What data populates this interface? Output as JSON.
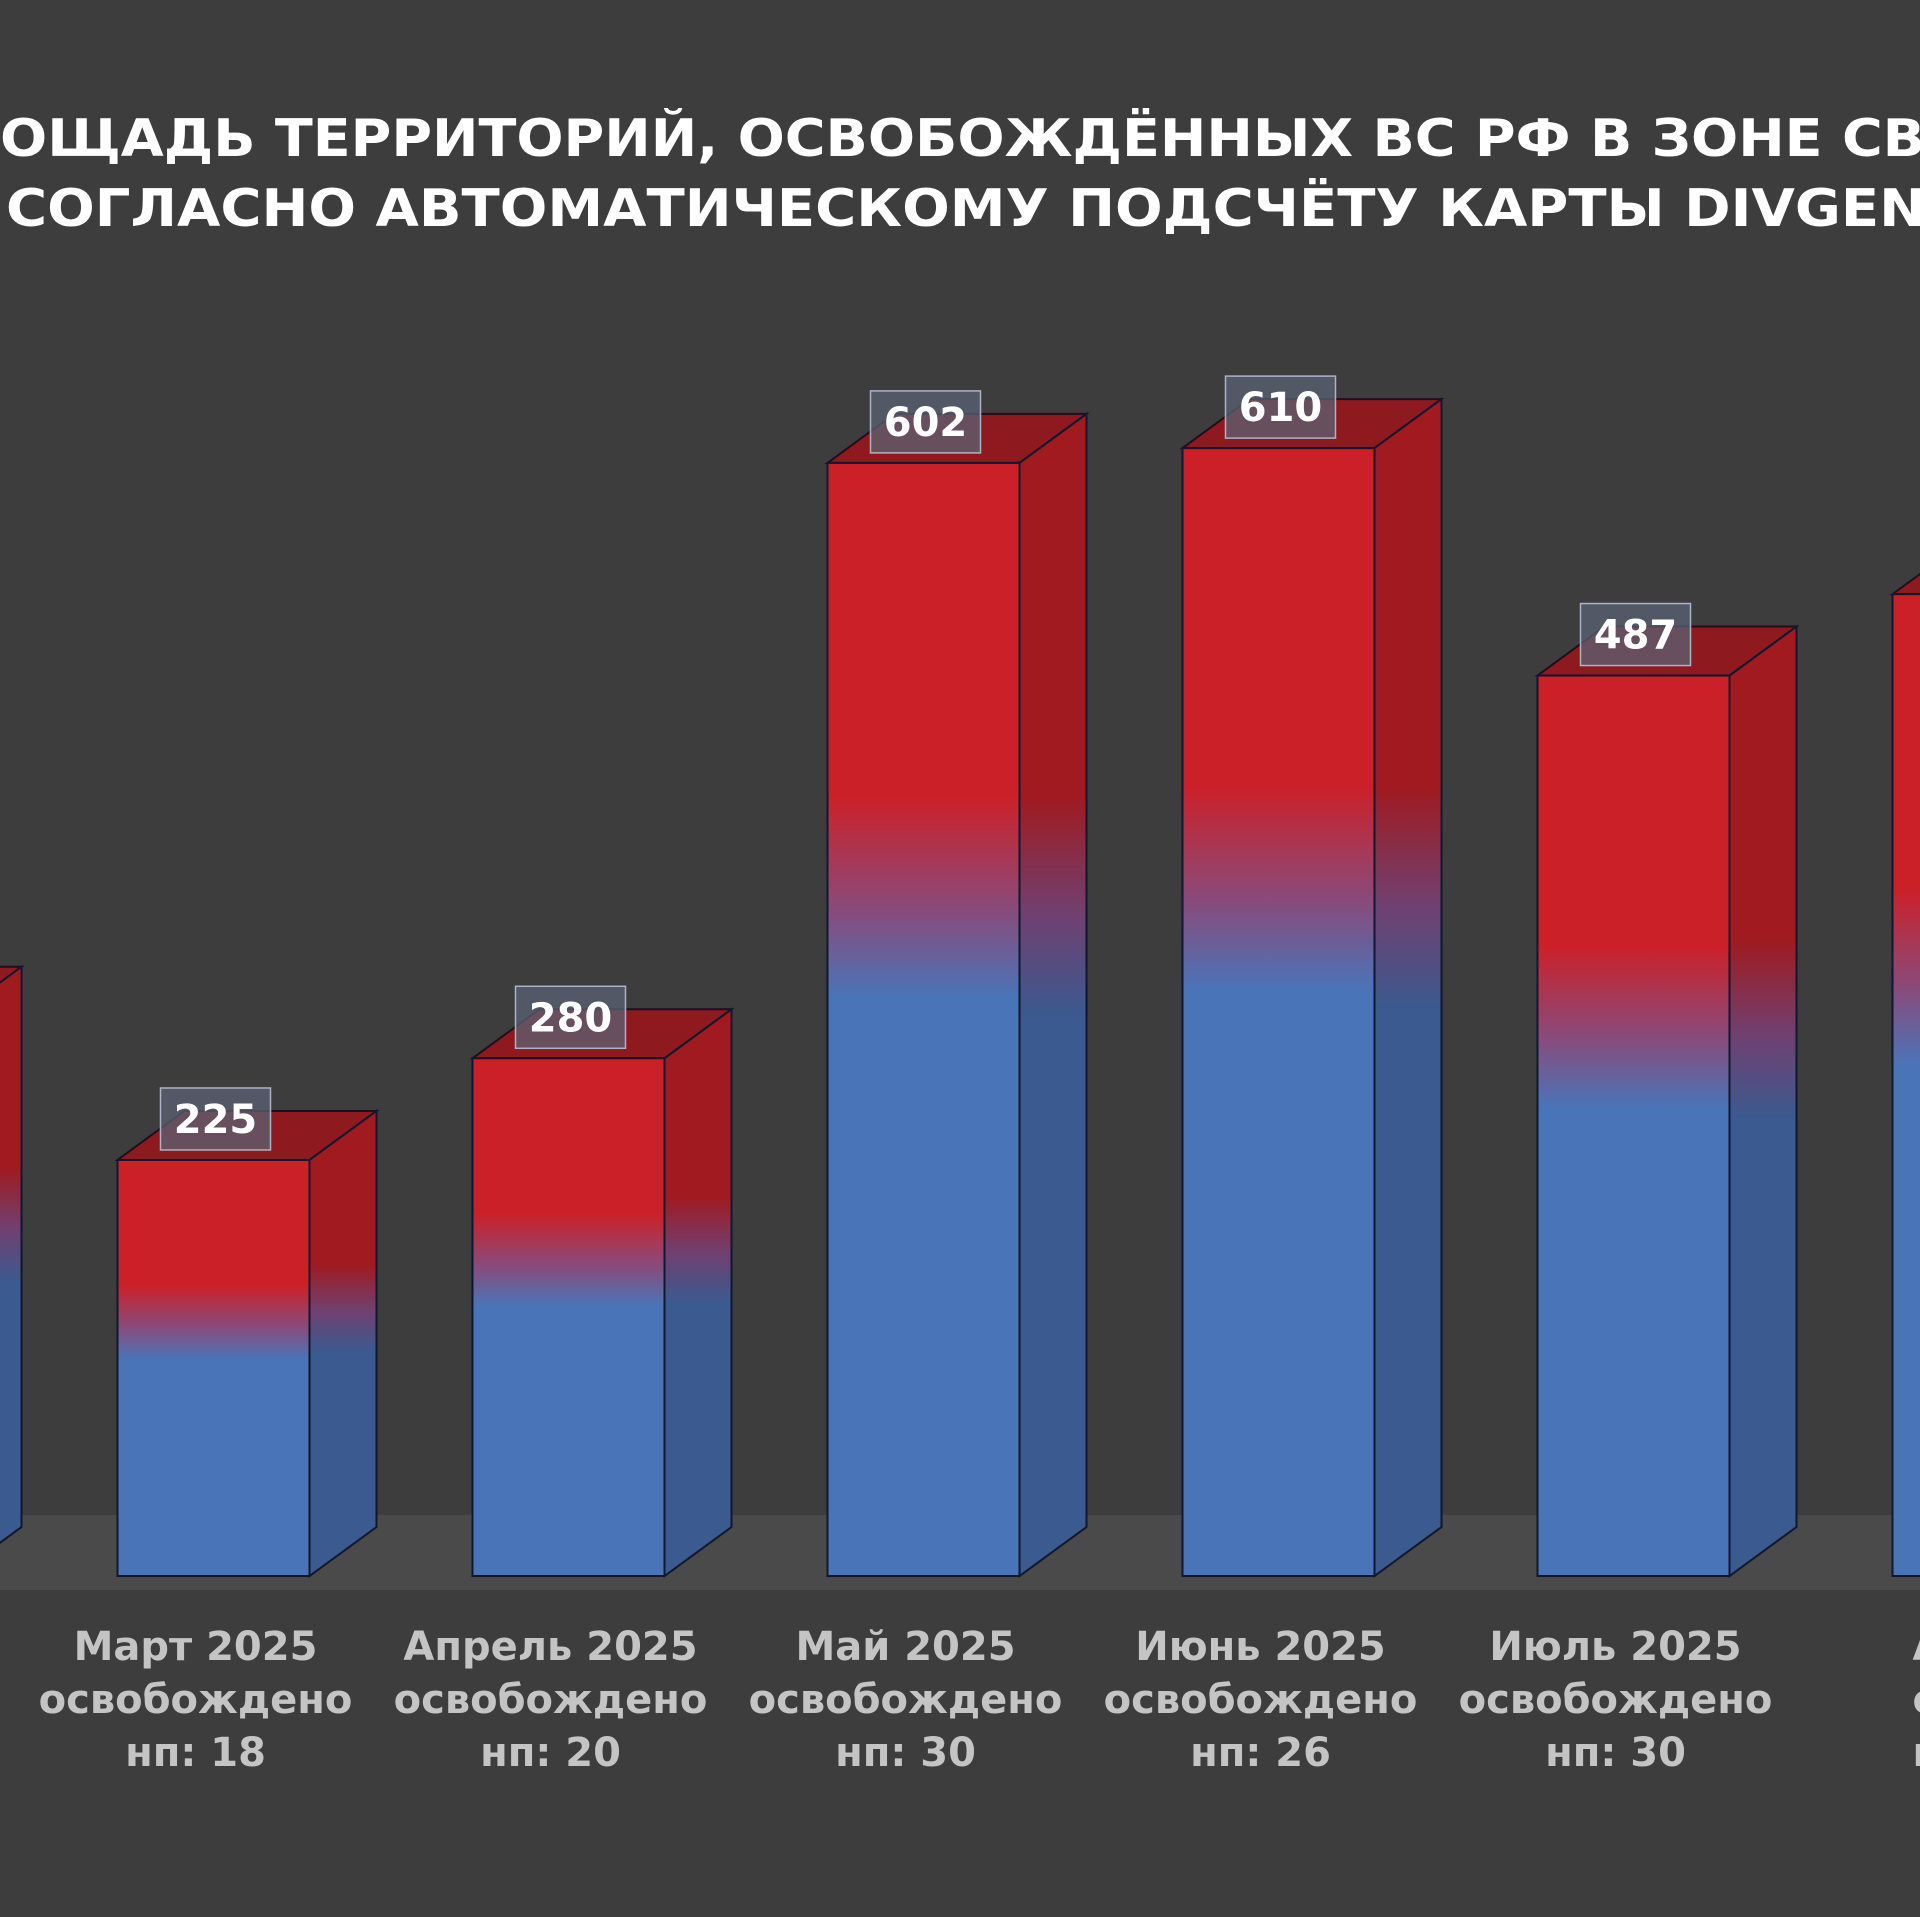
{
  "chart_data": {
    "type": "bar",
    "title": [
      "ОЩАДЬ ТЕРРИТОРИЙ, ОСВОБОЖДЁННЫХ ВС РФ В ЗОНЕ СВ",
      "СОГЛАСНО АВТОМАТИЧЕСКОМУ ПОДСЧЁТУ КАРТЫ DIVGEN"
    ],
    "xlabel": "",
    "ylabel": "",
    "ylim": [
      0,
      700
    ],
    "grid": false,
    "bars": [
      {
        "category": [],
        "value": 303,
        "label": null
      },
      {
        "category": [
          "Март 2025",
          "освобождено",
          "нп:  18"
        ],
        "value": 225,
        "label": "225"
      },
      {
        "category": [
          "Апрель 2025",
          "освобождено",
          "нп: 20"
        ],
        "value": 280,
        "label": "280"
      },
      {
        "category": [
          "Май 2025",
          "освобождено",
          "нп: 30"
        ],
        "value": 602,
        "label": "602"
      },
      {
        "category": [
          "Июнь 2025",
          "освобождено",
          "нп: 26"
        ],
        "value": 610,
        "label": "610"
      },
      {
        "category": [
          "Июль 2025",
          "освобождено",
          "нп: 30"
        ],
        "value": 487,
        "label": "487"
      },
      {
        "category": [
          "Авгу",
          "осво",
          "н"
        ],
        "value": 531,
        "label": null
      }
    ],
    "colors": {
      "background": "#3d3d3d",
      "floor": "#4a4a4a",
      "red": "#cc2028",
      "blue": "#4a74b8"
    }
  }
}
